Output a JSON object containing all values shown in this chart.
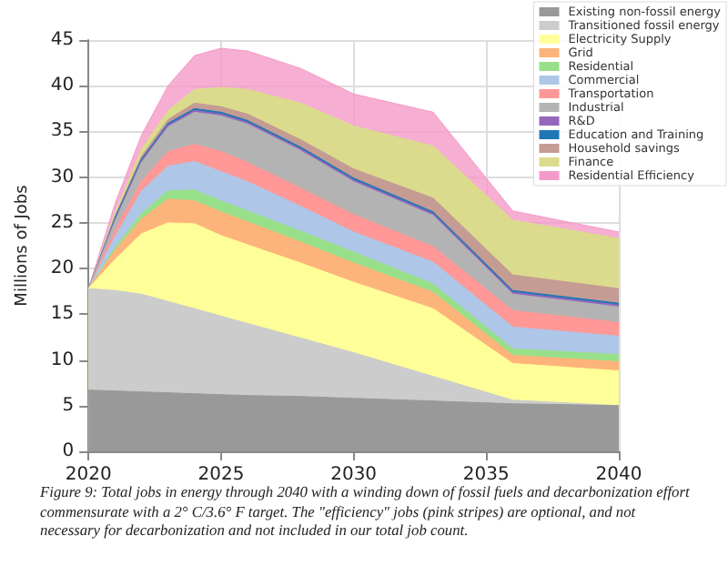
{
  "chart_data": {
    "type": "area",
    "stacked": true,
    "ylabel": "Millions of Jobs",
    "x": [
      2020,
      2021,
      2022,
      2023,
      2024,
      2025,
      2026,
      2028,
      2030,
      2033,
      2036,
      2040
    ],
    "xlim": [
      2020,
      2040
    ],
    "xticks": [
      2020,
      2025,
      2030,
      2035,
      2040
    ],
    "ylim": [
      0,
      45
    ],
    "yticks": [
      0,
      5,
      10,
      15,
      20,
      25,
      30,
      35,
      40,
      45
    ],
    "grid": true,
    "legend": "top right",
    "series": [
      {
        "name": "Existing non-fossil energy",
        "color": "#999999",
        "values": [
          6.7,
          6.6,
          6.5,
          6.4,
          6.3,
          6.2,
          6.1,
          6.0,
          5.8,
          5.5,
          5.2,
          5.0
        ]
      },
      {
        "name": "Transitioned fossil energy",
        "color": "#cccccc",
        "values": [
          11.1,
          11.0,
          10.7,
          10.0,
          9.3,
          8.6,
          7.9,
          6.4,
          5.0,
          2.7,
          0.4,
          0
        ]
      },
      {
        "name": "Electricity Supply",
        "color": "#ffff99",
        "values": [
          0,
          3.4,
          6.6,
          8.6,
          9.3,
          8.8,
          8.6,
          8.2,
          7.7,
          7.4,
          4.0,
          3.8
        ]
      },
      {
        "name": "Grid",
        "color": "#fdb47a",
        "values": [
          0,
          1.0,
          1.6,
          2.6,
          2.5,
          2.6,
          2.5,
          2.3,
          2.1,
          1.8,
          0.9,
          1.0
        ]
      },
      {
        "name": "Residential",
        "color": "#98df8a",
        "values": [
          0,
          0.3,
          0.6,
          0.9,
          1.2,
          1.2,
          1.2,
          1.2,
          1.2,
          0.9,
          0.7,
          0.8
        ]
      },
      {
        "name": "Commercial",
        "color": "#aec7e8",
        "values": [
          0,
          1.2,
          2.5,
          2.7,
          3.1,
          3.2,
          3.2,
          2.7,
          2.2,
          2.4,
          2.4,
          2.0
        ]
      },
      {
        "name": "Transportation",
        "color": "#ff9896",
        "values": [
          0,
          0.7,
          1.1,
          1.6,
          1.9,
          2.2,
          2.1,
          2.0,
          1.9,
          1.7,
          1.8,
          1.5
        ]
      },
      {
        "name": "Industrial",
        "color": "#b3b3b3",
        "values": [
          0,
          1.0,
          2.0,
          2.7,
          3.5,
          3.9,
          4.2,
          4.1,
          3.6,
          3.4,
          1.8,
          1.7
        ]
      },
      {
        "name": "R&D",
        "color": "#9467bd",
        "values": [
          0,
          0.2,
          0.2,
          0.2,
          0.2,
          0.2,
          0.2,
          0.2,
          0.2,
          0.2,
          0.2,
          0.2
        ]
      },
      {
        "name": "Education and Training",
        "color": "#1f77b4",
        "values": [
          0,
          0.2,
          0.2,
          0.2,
          0.2,
          0.2,
          0.2,
          0.2,
          0.2,
          0.2,
          0.2,
          0.2
        ]
      },
      {
        "name": "Household savings",
        "color": "#c49c94",
        "values": [
          0,
          0.1,
          0.3,
          0.4,
          0.6,
          0.6,
          0.7,
          0.8,
          1.0,
          1.5,
          1.7,
          1.6
        ]
      },
      {
        "name": "Finance",
        "color": "#dbdb8d",
        "values": [
          0,
          0.4,
          0.8,
          1.0,
          1.5,
          2.1,
          2.7,
          4.0,
          4.7,
          5.7,
          6.0,
          5.5
        ]
      },
      {
        "name": "Residential Efficiency",
        "color": "#f49ac8",
        "values": [
          0,
          1.0,
          1.5,
          2.7,
          3.7,
          4.3,
          4.2,
          3.8,
          3.5,
          3.7,
          1.0,
          0.7
        ]
      }
    ],
    "annotations": [
      "Figure 9: Total jobs in energy through 2040 with a winding down of fossil fuels and decarbonization effort commensurate with a 2° C/3.6° F target. The \"efficiency\" jobs (pink stripes) are optional, and not necessary for decarbonization and not included in our total job count."
    ]
  }
}
